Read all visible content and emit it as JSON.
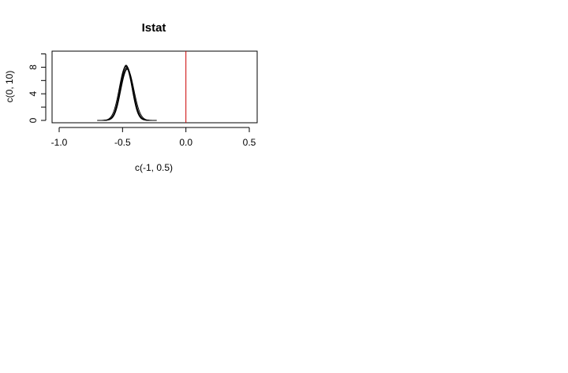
{
  "chart_data": {
    "type": "line",
    "title": "Istat",
    "xlabel": "c(-1, 0.5)",
    "ylabel": "c(0, 10)",
    "xlim": [
      -1.0,
      0.5
    ],
    "ylim": [
      0,
      10
    ],
    "x_ticks": [
      -1.0,
      -0.5,
      0.0,
      0.5
    ],
    "x_tick_labels": [
      "-1.0",
      "-0.5",
      "0.0",
      "0.5"
    ],
    "y_ticks": [
      0,
      2,
      4,
      6,
      8,
      10
    ],
    "y_tick_labels": [
      "0",
      "",
      "4",
      "",
      "8",
      ""
    ],
    "grid": false,
    "legend": "none",
    "vline": {
      "x": 0.0,
      "color": "#cc0000"
    },
    "curve_color": "#000000",
    "series": [
      {
        "mean": -0.47,
        "sd": 0.048,
        "peak": 8.2,
        "x_range": [
          -0.7,
          -0.27
        ]
      },
      {
        "mean": -0.465,
        "sd": 0.047,
        "peak": 8.0,
        "x_range": [
          -0.66,
          -0.25
        ]
      },
      {
        "mean": -0.475,
        "sd": 0.05,
        "peak": 8.1,
        "x_range": [
          -0.68,
          -0.3
        ]
      },
      {
        "mean": -0.468,
        "sd": 0.049,
        "peak": 7.8,
        "x_range": [
          -0.67,
          -0.23
        ]
      },
      {
        "mean": -0.472,
        "sd": 0.046,
        "peak": 8.3,
        "x_range": [
          -0.69,
          -0.28
        ]
      },
      {
        "mean": -0.462,
        "sd": 0.051,
        "peak": 7.7,
        "x_range": [
          -0.65,
          -0.26
        ]
      }
    ]
  }
}
